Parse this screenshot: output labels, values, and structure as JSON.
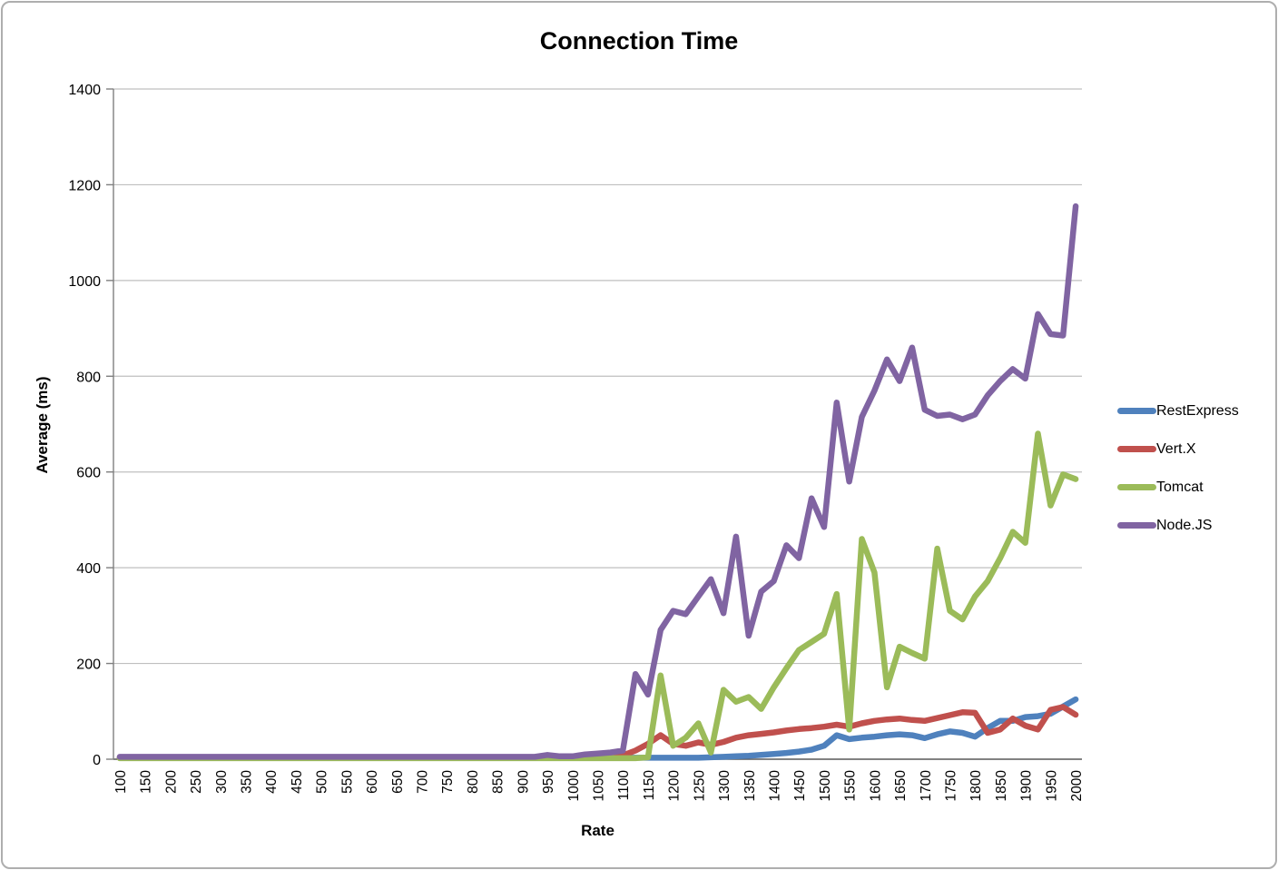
{
  "chart_data": {
    "type": "line",
    "title": "Connection Time",
    "xlabel": "Rate",
    "ylabel": "Average (ms)",
    "grid": true,
    "legend_position": "right",
    "ylim": [
      0,
      1400
    ],
    "y_ticks": [
      0,
      200,
      400,
      600,
      800,
      1000,
      1200,
      1400
    ],
    "x_tick_labels": [
      "100",
      "150",
      "200",
      "250",
      "300",
      "350",
      "400",
      "450",
      "500",
      "550",
      "600",
      "650",
      "700",
      "750",
      "800",
      "850",
      "900",
      "950",
      "1000",
      "1050",
      "1100",
      "1150",
      "1200",
      "1250",
      "1300",
      "1350",
      "1400",
      "1450",
      "1500",
      "1550",
      "1600",
      "1650",
      "1700",
      "1750",
      "1800",
      "1850",
      "1900",
      "1950",
      "2000"
    ],
    "x": [
      100,
      125,
      150,
      175,
      200,
      225,
      250,
      275,
      300,
      325,
      350,
      375,
      400,
      425,
      450,
      475,
      500,
      525,
      550,
      575,
      600,
      625,
      650,
      675,
      700,
      725,
      750,
      775,
      800,
      825,
      850,
      875,
      900,
      925,
      950,
      975,
      1000,
      1025,
      1050,
      1075,
      1100,
      1125,
      1150,
      1175,
      1200,
      1225,
      1250,
      1275,
      1300,
      1325,
      1350,
      1375,
      1400,
      1425,
      1450,
      1475,
      1500,
      1525,
      1550,
      1575,
      1600,
      1625,
      1650,
      1675,
      1700,
      1725,
      1750,
      1775,
      1800,
      1825,
      1850,
      1875,
      1900,
      1925,
      1950,
      1975,
      2000
    ],
    "series": [
      {
        "name": "RestExpress",
        "color": "#4F81BD",
        "values": [
          3,
          3,
          3,
          3,
          3,
          3,
          3,
          3,
          3,
          3,
          3,
          3,
          3,
          3,
          3,
          3,
          3,
          3,
          3,
          3,
          3,
          3,
          3,
          3,
          3,
          3,
          3,
          3,
          3,
          3,
          3,
          3,
          3,
          3,
          3,
          3,
          3,
          3,
          3,
          3,
          3,
          3,
          3,
          3,
          3,
          3,
          3,
          4,
          5,
          6,
          7,
          9,
          11,
          13,
          16,
          20,
          28,
          50,
          42,
          45,
          47,
          50,
          52,
          50,
          44,
          52,
          58,
          55,
          47,
          65,
          80,
          80,
          88,
          90,
          95,
          110,
          125
        ]
      },
      {
        "name": "Vert.X",
        "color": "#C0504D",
        "values": [
          3,
          3,
          3,
          3,
          3,
          3,
          3,
          3,
          3,
          3,
          3,
          3,
          3,
          3,
          3,
          3,
          3,
          3,
          3,
          3,
          3,
          3,
          3,
          3,
          3,
          3,
          3,
          3,
          3,
          3,
          3,
          3,
          3,
          3,
          3,
          3,
          3,
          3,
          3,
          4,
          8,
          18,
          32,
          50,
          32,
          28,
          35,
          30,
          36,
          45,
          50,
          53,
          56,
          60,
          63,
          65,
          68,
          72,
          68,
          75,
          80,
          83,
          85,
          82,
          80,
          86,
          92,
          98,
          97,
          55,
          62,
          85,
          70,
          62,
          103,
          109,
          93
        ]
      },
      {
        "name": "Tomcat",
        "color": "#9BBB59",
        "values": [
          2,
          2,
          2,
          2,
          2,
          2,
          2,
          2,
          2,
          2,
          2,
          2,
          2,
          2,
          2,
          2,
          2,
          2,
          2,
          2,
          2,
          2,
          2,
          2,
          2,
          2,
          2,
          2,
          2,
          2,
          2,
          2,
          2,
          2,
          2,
          2,
          2,
          2,
          2,
          2,
          2,
          2,
          4,
          175,
          28,
          45,
          75,
          14,
          145,
          120,
          130,
          105,
          150,
          190,
          228,
          245,
          262,
          345,
          62,
          460,
          390,
          150,
          235,
          222,
          210,
          440,
          310,
          292,
          340,
          372,
          420,
          475,
          452,
          680,
          530,
          595,
          585
        ]
      },
      {
        "name": "Node.JS",
        "color": "#8064A2",
        "values": [
          5,
          5,
          5,
          5,
          5,
          5,
          5,
          5,
          5,
          5,
          5,
          5,
          5,
          5,
          5,
          5,
          5,
          5,
          5,
          5,
          5,
          5,
          5,
          5,
          5,
          5,
          5,
          5,
          5,
          5,
          5,
          5,
          5,
          5,
          9,
          6,
          6,
          10,
          12,
          14,
          18,
          178,
          135,
          270,
          310,
          303,
          340,
          376,
          305,
          465,
          258,
          350,
          372,
          447,
          420,
          545,
          485,
          745,
          580,
          715,
          770,
          835,
          790,
          860,
          730,
          717,
          720,
          710,
          720,
          760,
          790,
          815,
          795,
          930,
          888,
          885,
          1155
        ]
      }
    ]
  },
  "colors": {
    "background": "#ffffff",
    "gridline": "#bfbfbf",
    "axis": "#7f7f7f",
    "zero_line": "#595959",
    "text": "#000000",
    "frame_border": "#aeaeae"
  }
}
